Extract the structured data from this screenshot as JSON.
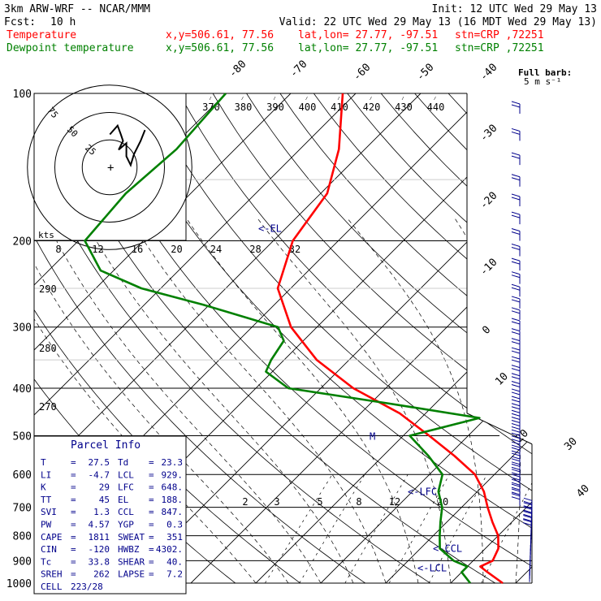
{
  "header": {
    "model": "3km ARW-WRF -- NCAR/MMM",
    "init": "Init: 12 UTC Wed 29 May 13",
    "fcst_label": "Fcst:",
    "fcst_value": "10 h",
    "valid": "Valid: 22 UTC Wed 29 May 13 (16 MDT Wed 29 May 13)",
    "temp_label": "Temperature",
    "dew_label": "Dewpoint temperature",
    "xy": "x,y=506.61, 77.56",
    "latlon": "lat,lon= 27.77, -97.51",
    "stn": "stn=CRP ,72251"
  },
  "colors": {
    "temperature": "#ff0000",
    "dewpoint": "#008000",
    "text": "#00008b",
    "grid": "#000000"
  },
  "wind_key": {
    "title": "Full barb:",
    "value": "5 m s⁻¹"
  },
  "hodograph": {
    "unit": "kts",
    "ring_labels": [
      "75",
      "50",
      "25"
    ]
  },
  "parcel_info": {
    "title": "Parcel Info",
    "rows": [
      {
        "l1": "T",
        "v1": "27.5",
        "l2": "Td",
        "v2": "23.3"
      },
      {
        "l1": "LI",
        "v1": "-4.7",
        "l2": "LCL",
        "v2": "929."
      },
      {
        "l1": "K",
        "v1": "29",
        "l2": "LFC",
        "v2": "648."
      },
      {
        "l1": "TT",
        "v1": "45",
        "l2": "EL",
        "v2": "188."
      },
      {
        "l1": "SVI",
        "v1": "1.3",
        "l2": "CCL",
        "v2": "847."
      },
      {
        "l1": "PW",
        "v1": "4.57",
        "l2": "YGP",
        "v2": "0.3"
      },
      {
        "l1": "CAPE",
        "v1": "1811",
        "l2": "SWEAT",
        "v2": "351"
      },
      {
        "l1": "CIN",
        "v1": "-120",
        "l2": "HWBZ",
        "v2": "4302."
      },
      {
        "l1": "Tc",
        "v1": "33.8",
        "l2": "SHEAR",
        "v2": "40."
      },
      {
        "l1": "SREH",
        "v1": "262",
        "l2": "LAPSE",
        "v2": "7.2"
      },
      {
        "l1": "CELL",
        "v1": "223/28",
        "l2": "",
        "v2": ""
      }
    ]
  },
  "chart_data": {
    "type": "line",
    "y_axis": "pressure (hPa), log scale",
    "y_ticks": [
      100,
      200,
      300,
      400,
      500,
      600,
      700,
      800,
      900,
      1000
    ],
    "ylim": [
      1000,
      100
    ],
    "temperature_labels": [
      {
        "v": "-80"
      },
      {
        "v": "-70"
      },
      {
        "v": "-60"
      },
      {
        "v": "-50"
      },
      {
        "v": "-40"
      },
      {
        "v": "-30"
      },
      {
        "v": "-20"
      },
      {
        "v": "-10"
      },
      {
        "v": "0"
      },
      {
        "v": "10"
      },
      {
        "v": "20"
      },
      {
        "v": "30"
      },
      {
        "v": "40"
      }
    ],
    "theta_e_labels": [
      "370",
      "380",
      "390",
      "400",
      "410",
      "420",
      "430",
      "440"
    ],
    "theta_labels": [
      "290",
      "280",
      "270"
    ],
    "mixing_ratio_labels_upper": [
      "8",
      "12",
      "16",
      "20",
      "24",
      "28",
      "32"
    ],
    "mixing_ratio_labels_lower": [
      "2",
      "3",
      "5",
      "8",
      "12",
      "20"
    ],
    "level_markers": [
      {
        "label": "<-EL",
        "p": 188
      },
      {
        "label": "<-LFC",
        "p": 648
      },
      {
        "label": "<-CCL",
        "p": 847
      },
      {
        "label": "<-LCL",
        "p": 929
      },
      {
        "label": "M",
        "p": 500
      }
    ],
    "series": [
      {
        "name": "Temperature",
        "color": "#ff0000",
        "p": [
          100,
          130,
          160,
          200,
          250,
          300,
          350,
          400,
          450,
          500,
          550,
          600,
          650,
          700,
          750,
          800,
          850,
          900,
          925,
          950,
          1000
        ],
        "t": [
          -72,
          -64,
          -59,
          -57,
          -52,
          -44,
          -35,
          -25,
          -14,
          -6,
          1,
          7,
          11,
          14,
          17,
          20,
          22,
          23,
          22,
          24,
          28
        ]
      },
      {
        "name": "Dewpoint temperature",
        "color": "#008000",
        "p": [
          100,
          130,
          160,
          200,
          230,
          250,
          270,
          300,
          320,
          350,
          370,
          400,
          430,
          460,
          500,
          550,
          600,
          650,
          700,
          750,
          800,
          850,
          900,
          925,
          950,
          1000
        ],
        "t": [
          -90,
          -89,
          -90,
          -89,
          -82,
          -73,
          -61,
          -46,
          -43,
          -42,
          -41,
          -35,
          -17,
          -1,
          -9,
          -3,
          2,
          4,
          7,
          9,
          11,
          13,
          17,
          20,
          20,
          23
        ]
      }
    ],
    "hodograph_trace": [
      {
        "u": -22,
        "v": 30
      },
      {
        "u": -15,
        "v": 38
      },
      {
        "u": -12,
        "v": 30
      },
      {
        "u": -10,
        "v": 24
      },
      {
        "u": -14,
        "v": 16
      },
      {
        "u": -7,
        "v": 22
      },
      {
        "u": -7,
        "v": 10
      },
      {
        "u": -3,
        "v": 2
      },
      {
        "u": 0,
        "v": 12
      },
      {
        "u": 6,
        "v": 24
      },
      {
        "u": 10,
        "v": 34
      }
    ]
  }
}
